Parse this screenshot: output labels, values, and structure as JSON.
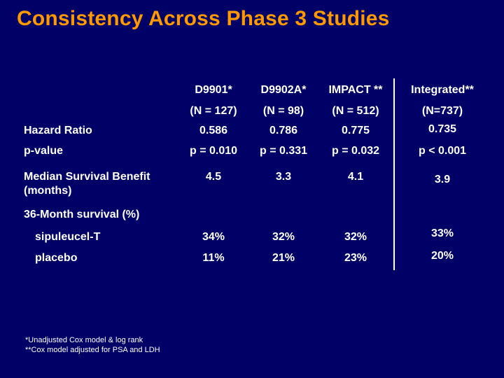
{
  "slide": {
    "title": "Consistency Across Phase 3 Studies",
    "colors": {
      "background": "#000066",
      "title": "#ff9900",
      "text": "#ffffff"
    }
  },
  "table": {
    "columns": [
      {
        "name": "D9901*",
        "n": "(N = 127)"
      },
      {
        "name": "D9902A*",
        "n": "(N = 98)"
      },
      {
        "name": "IMPACT **",
        "n": "(N = 512)"
      },
      {
        "name": "Integrated**",
        "n": "(N=737)"
      }
    ],
    "rows": {
      "hazard_ratio": {
        "label": "Hazard Ratio",
        "values": [
          "0.586",
          "0.786",
          "0.775",
          "0.735"
        ]
      },
      "p_value": {
        "label": "p-value",
        "values": [
          "p = 0.010",
          "p = 0.331",
          "p = 0.032",
          "p < 0.001"
        ]
      },
      "median_survival": {
        "label_line1": "Median Survival Benefit",
        "label_line2": "(months)",
        "values": [
          "4.5",
          "3.3",
          "4.1",
          "3.9"
        ]
      },
      "survival_36m": {
        "label": "36-Month survival (%)"
      },
      "sipuleucel": {
        "label": "sipuleucel-T",
        "values": [
          "34%",
          "32%",
          "32%",
          "33%"
        ]
      },
      "placebo": {
        "label": "placebo",
        "values": [
          "11%",
          "21%",
          "23%",
          "20%"
        ]
      }
    }
  },
  "footnotes": [
    "*Unadjusted Cox model & log rank",
    "**Cox model adjusted for PSA and LDH"
  ]
}
